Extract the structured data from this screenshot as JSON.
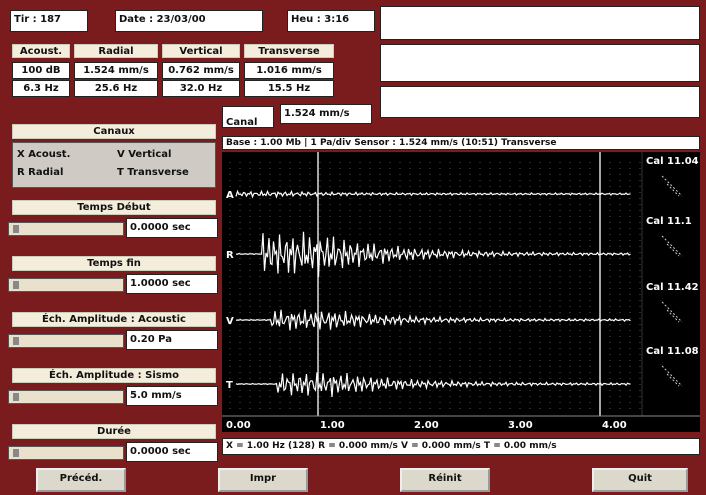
{
  "header": {
    "shot": "Tir : 187",
    "date": "Date : 23/03/00",
    "time": "Heu : 3:16"
  },
  "peaks": {
    "headers": [
      "Acoust.",
      "Radial",
      "Vertical",
      "Transverse"
    ],
    "rows": [
      [
        "100 dB",
        "1.524 mm/s",
        "0.762 mm/s",
        "1.016 mm/s"
      ],
      [
        "6.3 Hz",
        "25.6 Hz",
        "32.0 Hz",
        "15.5 Hz"
      ]
    ]
  },
  "channel_tab": "Canal",
  "channel_value": "1.524 mm/s",
  "plot": {
    "info": "Base : 1.00 Mb | 1 Pa/div    Sensor : 1.524 mm/s (10:51) Transverse",
    "channel_labels": [
      "A",
      "R",
      "V",
      "T"
    ],
    "x_labels": [
      "0.00",
      "1.00",
      "2.00",
      "3.00",
      "4.00"
    ],
    "cal_labels": [
      "Cal 11.04",
      "Cal 11.1",
      "Cal 11.42",
      "Cal 11.08"
    ],
    "status": "X = 1.00 Hz (128)    R = 0.000 mm/s    V = 0.000 mm/s    T = 0.00 mm/s"
  },
  "channels": {
    "title": "Canaux",
    "options": [
      "X Acoust.",
      "V Vertical",
      "R Radial",
      "T Transverse"
    ]
  },
  "controls": [
    {
      "label": "Temps Début",
      "value": "0.0000 sec"
    },
    {
      "label": "Temps fin",
      "value": "1.0000 sec"
    },
    {
      "label": "Éch. Amplitude : Acoustic",
      "value": "0.20 Pa"
    },
    {
      "label": "Éch. Amplitude : Sismo",
      "value": "5.0 mm/s"
    },
    {
      "label": "Durée",
      "value": "0.0000 sec"
    }
  ],
  "buttons": [
    "Précéd.",
    "Impr",
    "Réinit",
    "Quit"
  ]
}
